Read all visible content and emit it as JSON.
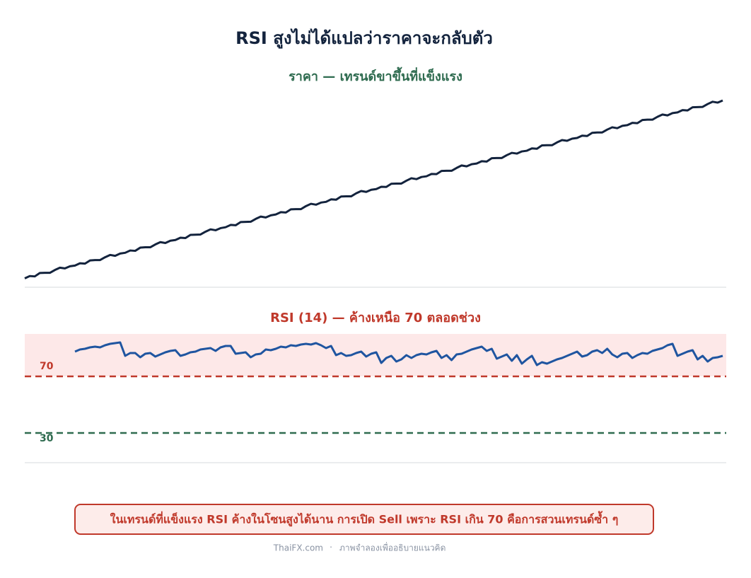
{
  "title": "RSI สูงไม่ได้แปลว่าราคาจะกลับตัว",
  "note": "ในเทรนด์ที่แข็งแรง RSI ค้างในโซนสูงได้นาน  การเปิด Sell เพราะ RSI เกิน 70 คือการสวนเทรนด์ซ้ำ ๆ",
  "footer": {
    "site": "ThaiFX.com",
    "caption": "ภาพจำลองเพื่ออธิบายแนวคิด"
  },
  "chart_data": [
    {
      "type": "line",
      "title": "ราคา — เทรนด์ขาขึ้นที่แข็งแรง",
      "title_color": "#2e6b4f",
      "ylim": [
        95,
        205
      ],
      "series": [
        {
          "name": "ราคา",
          "color": "#13233d",
          "values": [
            100.0,
            101.3,
            101.1,
            103.0,
            103.1,
            103.1,
            104.7,
            106.0,
            105.6,
            106.8,
            107.2,
            108.5,
            108.3,
            110.1,
            110.3,
            110.3,
            111.9,
            113.2,
            112.7,
            114.0,
            114.4,
            115.7,
            115.5,
            117.3,
            117.5,
            117.5,
            119.1,
            120.4,
            119.9,
            121.2,
            121.6,
            122.9,
            122.7,
            124.5,
            124.6,
            124.7,
            126.3,
            127.6,
            127.1,
            128.3,
            128.8,
            130.1,
            129.9,
            131.7,
            131.8,
            131.9,
            133.5,
            134.8,
            134.3,
            135.5,
            136.0,
            137.3,
            137.1,
            138.9,
            139.0,
            139.0,
            140.7,
            142.0,
            141.5,
            142.7,
            143.1,
            144.5,
            144.3,
            146.1,
            146.2,
            146.2,
            147.9,
            149.2,
            148.7,
            149.9,
            150.3,
            151.6,
            151.5,
            153.3,
            153.4,
            153.4,
            155.0,
            156.4,
            155.9,
            157.1,
            157.5,
            158.8,
            158.7,
            160.5,
            160.6,
            160.6,
            162.2,
            163.6,
            163.1,
            164.3,
            164.7,
            166.0,
            165.8,
            167.7,
            167.8,
            167.8,
            169.4,
            170.7,
            170.3,
            171.5,
            171.9,
            173.2,
            173.0,
            174.9,
            175.0,
            175.0,
            176.6,
            177.9,
            177.5,
            178.7,
            179.1,
            180.4,
            180.2,
            182.0,
            182.2,
            182.2,
            183.8,
            185.1,
            184.6,
            185.9,
            186.3,
            187.6,
            187.4,
            189.2,
            189.4,
            189.4,
            191.0,
            192.3,
            191.8,
            193.1,
            193.5,
            194.8,
            194.6,
            196.4,
            196.5,
            196.6,
            198.2,
            199.5,
            199.0,
            200.2
          ]
        }
      ]
    },
    {
      "type": "line",
      "title": "RSI (14) — ค้างเหนือ 70 ตลอดช่วง",
      "title_color": "#c0392b",
      "ylim": [
        9,
        101
      ],
      "zone": {
        "from": 70,
        "to": 100,
        "color": "#fde8e8"
      },
      "hlines": [
        {
          "value": 70,
          "color": "#c0392b"
        },
        {
          "value": 30,
          "color": "#2e6b4f"
        }
      ],
      "series": [
        {
          "name": "RSI (14)",
          "color": "#1f55a0",
          "values": [
            null,
            null,
            null,
            null,
            null,
            null,
            null,
            null,
            null,
            null,
            87.5,
            89,
            89.5,
            90.5,
            91,
            90.5,
            92,
            93,
            93.5,
            94,
            84.5,
            86.5,
            86.5,
            83.5,
            86,
            86.5,
            84,
            85.5,
            87,
            88,
            88.5,
            84.5,
            85.5,
            87,
            87.5,
            89,
            89.5,
            90,
            88,
            90.5,
            91.5,
            91.5,
            86,
            86.5,
            87,
            83.5,
            85.5,
            86,
            89,
            88.5,
            89.5,
            91,
            90.5,
            92,
            91.5,
            92.5,
            93,
            92.5,
            93.5,
            92,
            90,
            91.5,
            85,
            86.5,
            84.5,
            85,
            86.5,
            87.5,
            84,
            86,
            87,
            79.5,
            83,
            84.5,
            80.5,
            82,
            85,
            83,
            85,
            86,
            85.5,
            87,
            88,
            83,
            85,
            81.5,
            85.5,
            86,
            87.5,
            89,
            90,
            91,
            88,
            89.5,
            82.5,
            84,
            85.5,
            81,
            85,
            79,
            82,
            84.5,
            78,
            80,
            79,
            80.5,
            82,
            83,
            84.5,
            86,
            87.5,
            84,
            85,
            87.5,
            88.5,
            86.5,
            89.5,
            85.5,
            83.5,
            86,
            86.5,
            83,
            85,
            86.5,
            86,
            88,
            89,
            90,
            92,
            93,
            84.5,
            86,
            87.5,
            88.5,
            82,
            84.5,
            80.5,
            83,
            83.5,
            84.5
          ]
        }
      ]
    }
  ]
}
